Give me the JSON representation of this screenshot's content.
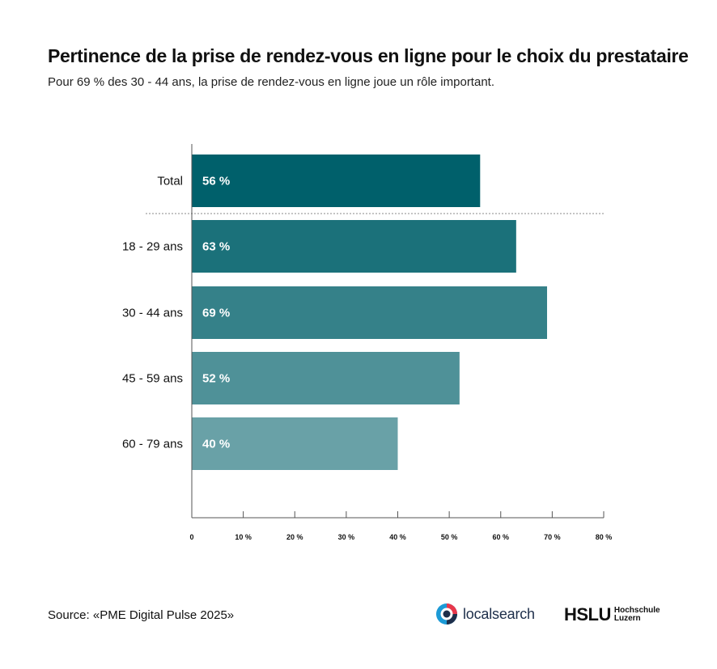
{
  "header": {
    "title": "Pertinence de la prise de rendez-vous en ligne pour le choix du prestataire",
    "subtitle": "Pour 69 % des 30 - 44 ans, la prise de rendez-vous en ligne joue un rôle important."
  },
  "chart_data": {
    "type": "bar",
    "orientation": "horizontal",
    "categories": [
      "Total",
      "18 - 29 ans",
      "30 - 44 ans",
      "45 - 59 ans",
      "60 - 79 ans"
    ],
    "values": [
      56,
      63,
      69,
      52,
      40
    ],
    "value_labels": [
      "56 %",
      "63 %",
      "69 %",
      "52 %",
      "40 %"
    ],
    "bar_colors": [
      "#00606b",
      "#1b717a",
      "#358189",
      "#4f9198",
      "#69a1a7"
    ],
    "xlim": [
      0,
      80
    ],
    "x_ticks": [
      0,
      10,
      20,
      30,
      40,
      50,
      60,
      70,
      80
    ],
    "x_tick_labels": [
      "0",
      "10 %",
      "20 %",
      "30 %",
      "40 %",
      "50 %",
      "60 %",
      "70 %",
      "80 %"
    ],
    "separator_after_first": true,
    "grid": false
  },
  "footer": {
    "source": "Source: «PME Digital Pulse 2025»",
    "logo_localsearch": "localsearch",
    "logo_hslu": "HSLU",
    "logo_hslu_line1": "Hochschule",
    "logo_hslu_line2": "Luzern"
  }
}
